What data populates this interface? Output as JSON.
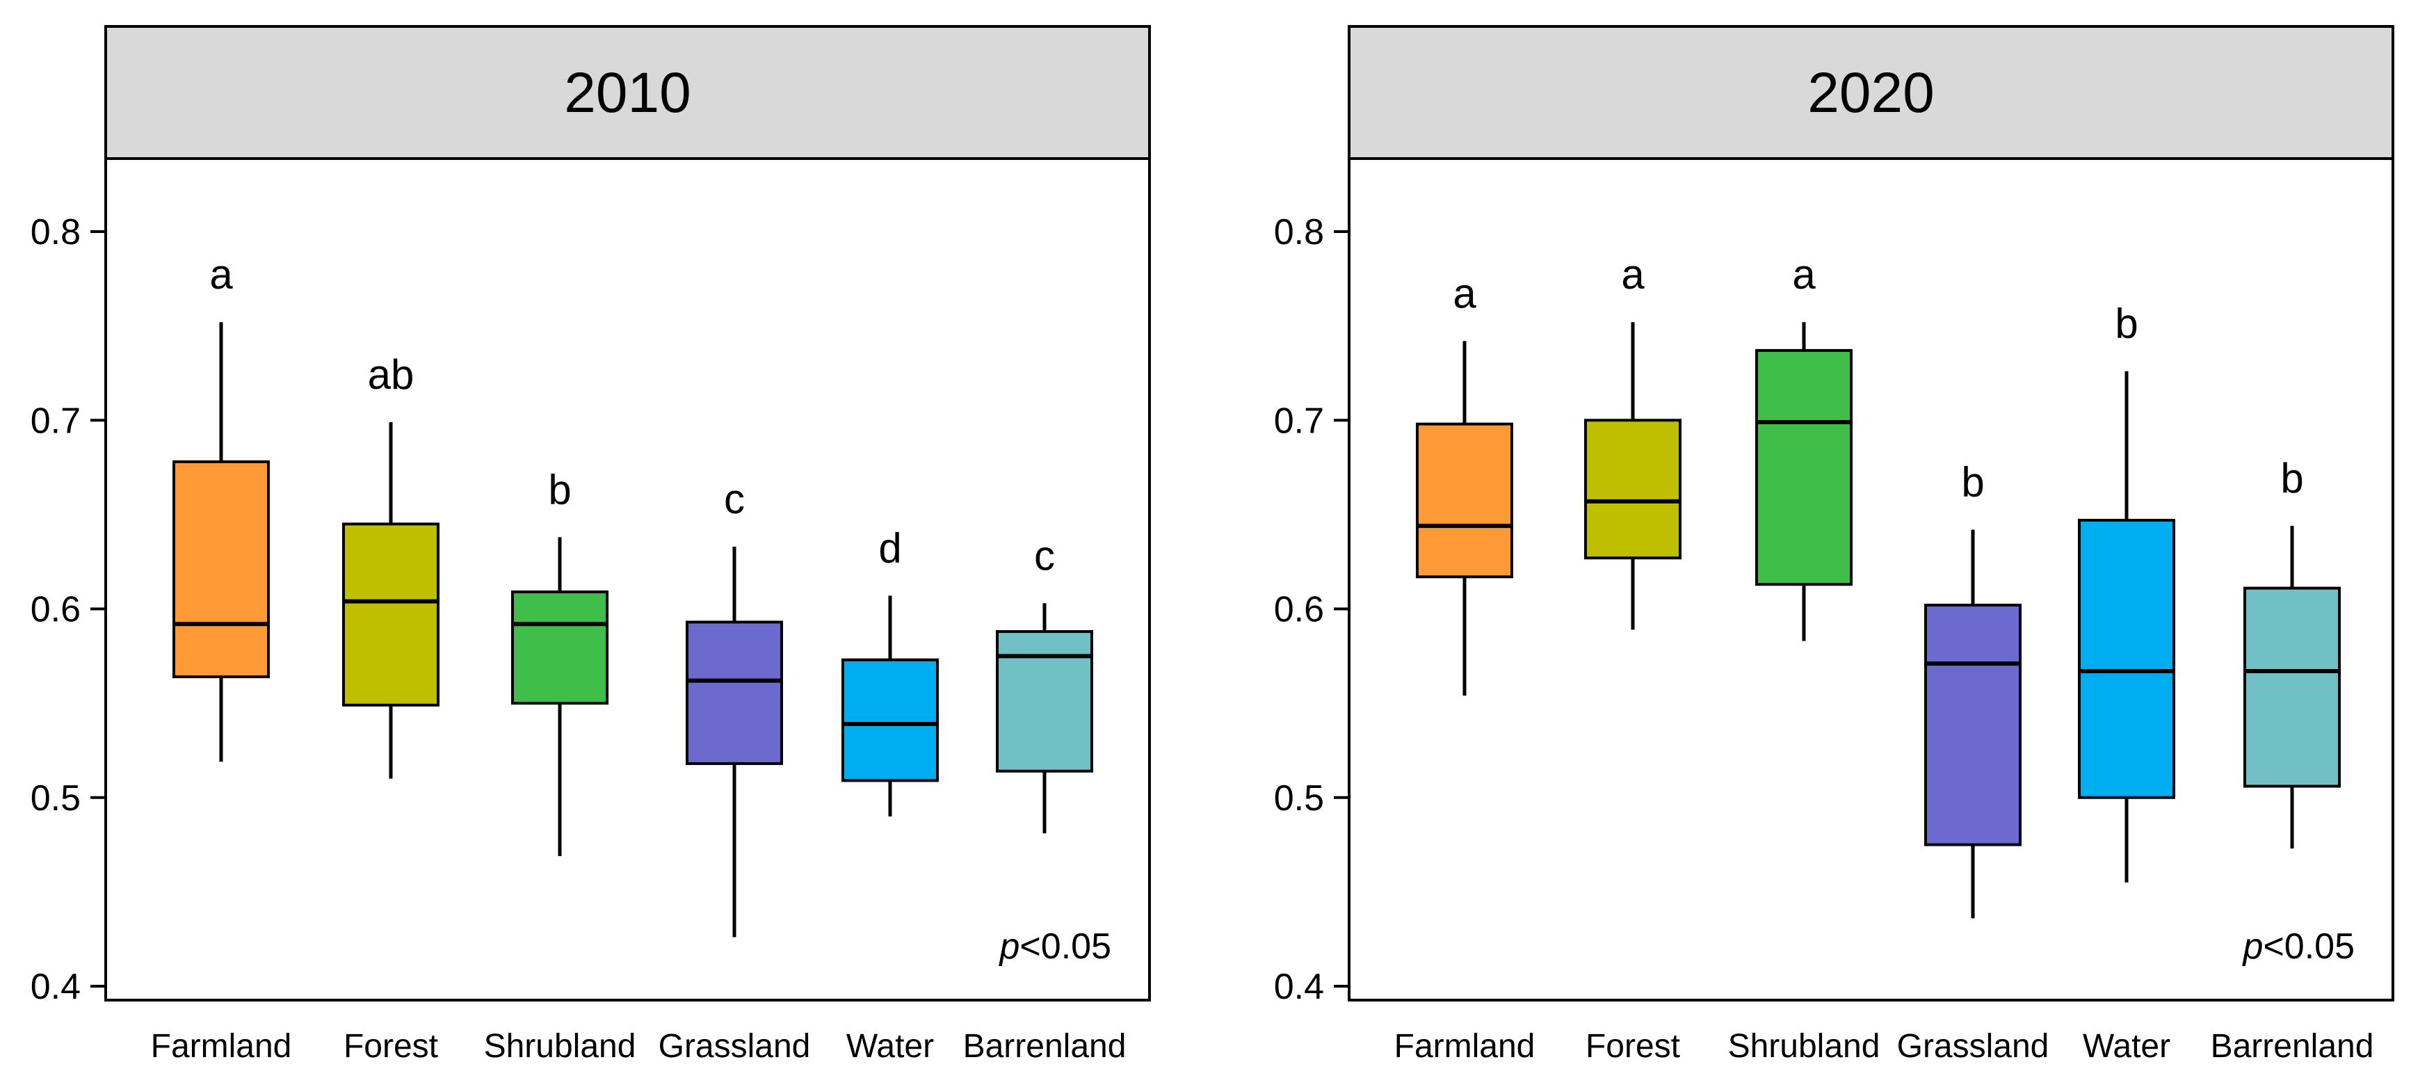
{
  "chart_data": [
    {
      "type": "box",
      "title": "2010",
      "ylim": [
        0.4,
        0.8
      ],
      "yticks": [
        "0.4",
        "0.5",
        "0.6",
        "0.7",
        "0.8"
      ],
      "categories": [
        "Farmland",
        "Forest",
        "Shrubland",
        "Grassland",
        "Water",
        "Barrenland"
      ],
      "colors": [
        "#FF9A36",
        "#BFBF00",
        "#3FBF4A",
        "#6B6BCF",
        "#00AEEF",
        "#6FBFC4"
      ],
      "boxes": [
        {
          "min": 0.519,
          "q1": 0.564,
          "median": 0.592,
          "q3": 0.678,
          "max": 0.752
        },
        {
          "min": 0.51,
          "q1": 0.549,
          "median": 0.604,
          "q3": 0.645,
          "max": 0.699
        },
        {
          "min": 0.469,
          "q1": 0.55,
          "median": 0.592,
          "q3": 0.609,
          "max": 0.638
        },
        {
          "min": 0.426,
          "q1": 0.518,
          "median": 0.562,
          "q3": 0.593,
          "max": 0.633
        },
        {
          "min": 0.49,
          "q1": 0.509,
          "median": 0.539,
          "q3": 0.573,
          "max": 0.607
        },
        {
          "min": 0.481,
          "q1": 0.514,
          "median": 0.575,
          "q3": 0.588,
          "max": 0.603
        }
      ],
      "letters": [
        "a",
        "ab",
        "b",
        "c",
        "d",
        "c"
      ],
      "annotation": {
        "italic": "p",
        "text": "<0.05"
      }
    },
    {
      "type": "box",
      "title": "2020",
      "ylim": [
        0.4,
        0.8
      ],
      "yticks": [
        "0.4",
        "0.5",
        "0.6",
        "0.7",
        "0.8"
      ],
      "categories": [
        "Farmland",
        "Forest",
        "Shrubland",
        "Grassland",
        "Water",
        "Barrenland"
      ],
      "colors": [
        "#FF9A36",
        "#BFBF00",
        "#3FBF4A",
        "#6B6BCF",
        "#00AEEF",
        "#6FBFC4"
      ],
      "boxes": [
        {
          "min": 0.554,
          "q1": 0.617,
          "median": 0.644,
          "q3": 0.698,
          "max": 0.742
        },
        {
          "min": 0.589,
          "q1": 0.627,
          "median": 0.657,
          "q3": 0.7,
          "max": 0.752
        },
        {
          "min": 0.583,
          "q1": 0.613,
          "median": 0.699,
          "q3": 0.737,
          "max": 0.752
        },
        {
          "min": 0.436,
          "q1": 0.475,
          "median": 0.571,
          "q3": 0.602,
          "max": 0.642
        },
        {
          "min": 0.455,
          "q1": 0.5,
          "median": 0.567,
          "q3": 0.647,
          "max": 0.726
        },
        {
          "min": 0.473,
          "q1": 0.506,
          "median": 0.567,
          "q3": 0.611,
          "max": 0.644
        }
      ],
      "letters": [
        "a",
        "a",
        "a",
        "b",
        "b",
        "b"
      ],
      "annotation": {
        "italic": "p",
        "text": "<0.05"
      }
    }
  ]
}
